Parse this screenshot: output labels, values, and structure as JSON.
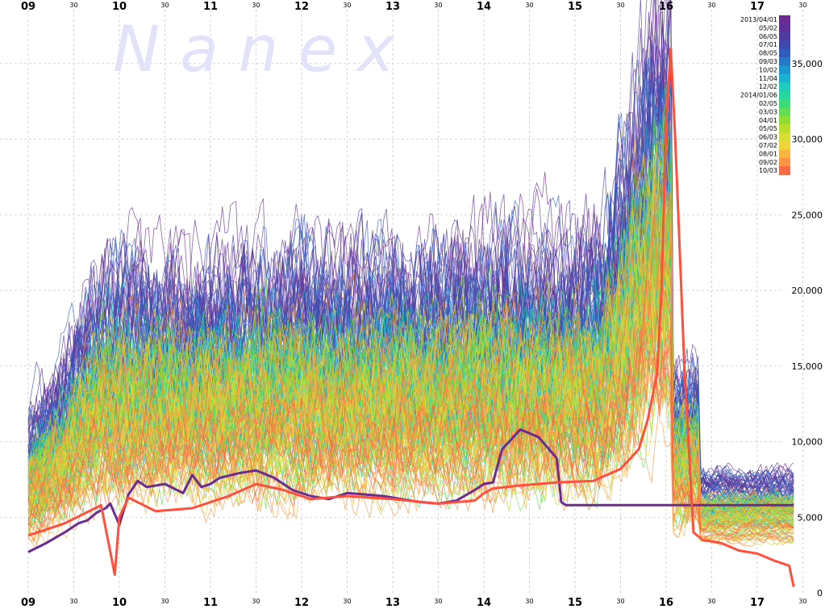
{
  "watermark": "N a n e x",
  "chart_data": {
    "type": "line",
    "title": "",
    "xlabel": "",
    "ylabel": "",
    "x_range": [
      9.0,
      17.5
    ],
    "ylim": [
      0,
      40000
    ],
    "grid": true,
    "legend_position": "top-right",
    "x_tick_labels": [
      "09",
      "10",
      "11",
      "12",
      "13",
      "14",
      "15",
      "16",
      "17"
    ],
    "x_half_tick_label": "30",
    "y_tick_labels": [
      "0",
      "5,000",
      "10,000",
      "15,000",
      "20,000",
      "25,000",
      "30,000",
      "35,000"
    ],
    "y_ticks": [
      0,
      5000,
      10000,
      15000,
      20000,
      25000,
      30000,
      35000
    ],
    "legend": [
      {
        "label": "2013/04/01",
        "color": "#6a2c8f"
      },
      {
        "label": "05/02",
        "color": "#5e3196"
      },
      {
        "label": "06/05",
        "color": "#4f3aa0"
      },
      {
        "label": "07/01",
        "color": "#3f48ad"
      },
      {
        "label": "08/05",
        "color": "#2f5cbc"
      },
      {
        "label": "09/03",
        "color": "#2478c6"
      },
      {
        "label": "10/02",
        "color": "#1d96cf"
      },
      {
        "label": "11/04",
        "color": "#19b3cf"
      },
      {
        "label": "12/02",
        "color": "#1ccbbd"
      },
      {
        "label": "2014/01/06",
        "color": "#25d79f"
      },
      {
        "label": "02/05",
        "color": "#3ddc7b"
      },
      {
        "label": "03/03",
        "color": "#62dd55"
      },
      {
        "label": "04/01",
        "color": "#8fdc32"
      },
      {
        "label": "05/05",
        "color": "#b8dd2a"
      },
      {
        "label": "06/03",
        "color": "#d8de30"
      },
      {
        "label": "07/02",
        "color": "#efd43a"
      },
      {
        "label": "08/01",
        "color": "#f7b640"
      },
      {
        "label": "09/02",
        "color": "#f99544"
      },
      {
        "label": "10/03",
        "color": "#fb6a46"
      }
    ],
    "highlight_series": [
      {
        "color": "#6a2c8f",
        "x": [
          9.0,
          9.2,
          9.4,
          9.55,
          9.65,
          9.75,
          9.85,
          9.9,
          10.0,
          10.1,
          10.2,
          10.3,
          10.5,
          10.7,
          10.8,
          10.9,
          11.0,
          11.1,
          11.3,
          11.5,
          11.7,
          11.9,
          12.1,
          12.3,
          12.5,
          12.7,
          12.9,
          13.1,
          13.3,
          13.5,
          13.7,
          13.9,
          14.0,
          14.1,
          14.2,
          14.4,
          14.6,
          14.8,
          14.85,
          14.9,
          15.2,
          15.6,
          16.0,
          16.4,
          16.8,
          17.2,
          17.4
        ],
        "y": [
          2700,
          3300,
          4000,
          4600,
          4800,
          5300,
          5600,
          5900,
          4500,
          6500,
          7400,
          7000,
          7200,
          6600,
          7800,
          7000,
          7200,
          7600,
          7900,
          8100,
          7600,
          6800,
          6400,
          6200,
          6600,
          6500,
          6400,
          6200,
          6000,
          5900,
          6100,
          6800,
          7200,
          7300,
          9500,
          10800,
          10300,
          8900,
          6000,
          5800,
          5800,
          5800,
          5800,
          5800,
          5800,
          5800,
          5800
        ]
      },
      {
        "color": "#ff4f3d",
        "x": [
          9.0,
          9.4,
          9.8,
          9.95,
          10.0,
          10.1,
          10.4,
          10.8,
          11.2,
          11.5,
          11.8,
          12.1,
          12.5,
          13.0,
          13.5,
          13.9,
          14.0,
          14.1,
          14.4,
          14.8,
          15.2,
          15.5,
          15.7,
          15.8,
          15.9,
          15.95,
          16.0,
          16.05,
          16.1,
          16.2,
          16.3,
          16.4,
          16.6,
          16.8,
          17.0,
          17.2,
          17.35,
          17.4
        ],
        "y": [
          3800,
          4600,
          5800,
          1200,
          5000,
          6300,
          5400,
          5600,
          6400,
          7200,
          6800,
          6200,
          6400,
          6200,
          5900,
          6100,
          6600,
          6900,
          7100,
          7300,
          7400,
          8200,
          9500,
          11500,
          14500,
          20000,
          31000,
          36000,
          30000,
          15000,
          4000,
          3500,
          3300,
          2800,
          2600,
          2100,
          1800,
          400
        ]
      }
    ]
  }
}
